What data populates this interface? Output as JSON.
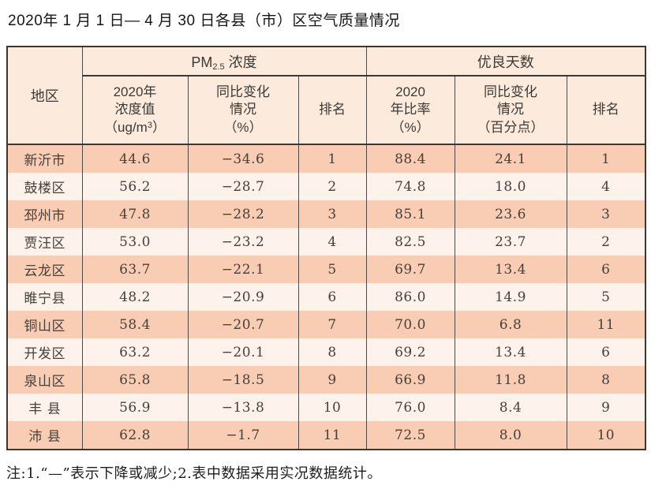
{
  "title": "2020年 1 月 1 日— 4 月 30 日各县（市）区空气质量情况",
  "table": {
    "header": {
      "region": "地区",
      "pm_group": {
        "prefix": "PM",
        "sub": "2.5",
        "suffix": " 浓度"
      },
      "good_group": "优良天数",
      "pm_value": {
        "line1": "2020年",
        "line2": "浓度值",
        "unit_prefix": "（ug/m",
        "unit_sup": "3",
        "unit_suffix": "）"
      },
      "pm_change": {
        "line1": "同比变化",
        "line2": "情况",
        "line3": "（%）"
      },
      "pm_rank": "排名",
      "good_rate": {
        "line1": "2020",
        "line2": "年比率",
        "line3": "（%）"
      },
      "good_change": {
        "line1": "同比变化",
        "line2": "情况",
        "line3": "（百分点）"
      },
      "good_rank": "排名"
    },
    "row_keys": [
      "region",
      "pm_value",
      "pm_change",
      "pm_rank",
      "good_rate",
      "good_change",
      "good_rank"
    ],
    "rows": [
      {
        "region": "新沂市",
        "pm_value": "44.6",
        "pm_change": "−34.6",
        "pm_rank": "1",
        "good_rate": "88.4",
        "good_change": "24.1",
        "good_rank": "1"
      },
      {
        "region": "鼓楼区",
        "pm_value": "56.2",
        "pm_change": "−28.7",
        "pm_rank": "2",
        "good_rate": "74.8",
        "good_change": "18.0",
        "good_rank": "4"
      },
      {
        "region": "邳州市",
        "pm_value": "47.8",
        "pm_change": "−28.2",
        "pm_rank": "3",
        "good_rate": "85.1",
        "good_change": "23.6",
        "good_rank": "3"
      },
      {
        "region": "贾汪区",
        "pm_value": "53.0",
        "pm_change": "−23.2",
        "pm_rank": "4",
        "good_rate": "82.5",
        "good_change": "23.7",
        "good_rank": "2"
      },
      {
        "region": "云龙区",
        "pm_value": "63.7",
        "pm_change": "−22.1",
        "pm_rank": "5",
        "good_rate": "69.7",
        "good_change": "13.4",
        "good_rank": "6"
      },
      {
        "region": "睢宁县",
        "pm_value": "48.2",
        "pm_change": "−20.9",
        "pm_rank": "6",
        "good_rate": "86.0",
        "good_change": "14.9",
        "good_rank": "5"
      },
      {
        "region": "铜山区",
        "pm_value": "58.4",
        "pm_change": "−20.7",
        "pm_rank": "7",
        "good_rate": "70.0",
        "good_change": "6.8",
        "good_rank": "11"
      },
      {
        "region": "开发区",
        "pm_value": "63.2",
        "pm_change": "−20.1",
        "pm_rank": "8",
        "good_rate": "69.2",
        "good_change": "13.4",
        "good_rank": "6"
      },
      {
        "region": "泉山区",
        "pm_value": "65.8",
        "pm_change": "−18.5",
        "pm_rank": "9",
        "good_rate": "66.9",
        "good_change": "11.8",
        "good_rank": "8"
      },
      {
        "region": "丰 县",
        "pm_value": "56.9",
        "pm_change": "−13.8",
        "pm_rank": "10",
        "good_rate": "76.0",
        "good_change": "8.4",
        "good_rank": "9"
      },
      {
        "region": "沛 县",
        "pm_value": "62.8",
        "pm_change": "−1.7",
        "pm_rank": "11",
        "good_rate": "72.5",
        "good_change": "8.0",
        "good_rank": "10"
      }
    ]
  },
  "note": "注:1.“—”表示下降或减少;2.表中数据采用实况数据统计。",
  "colors": {
    "row_odd": "#f9ccb4",
    "row_even": "#fdf3ec",
    "header_bg": "#fcebdc",
    "border_dark": "#3b3733",
    "text": "#46403a"
  }
}
